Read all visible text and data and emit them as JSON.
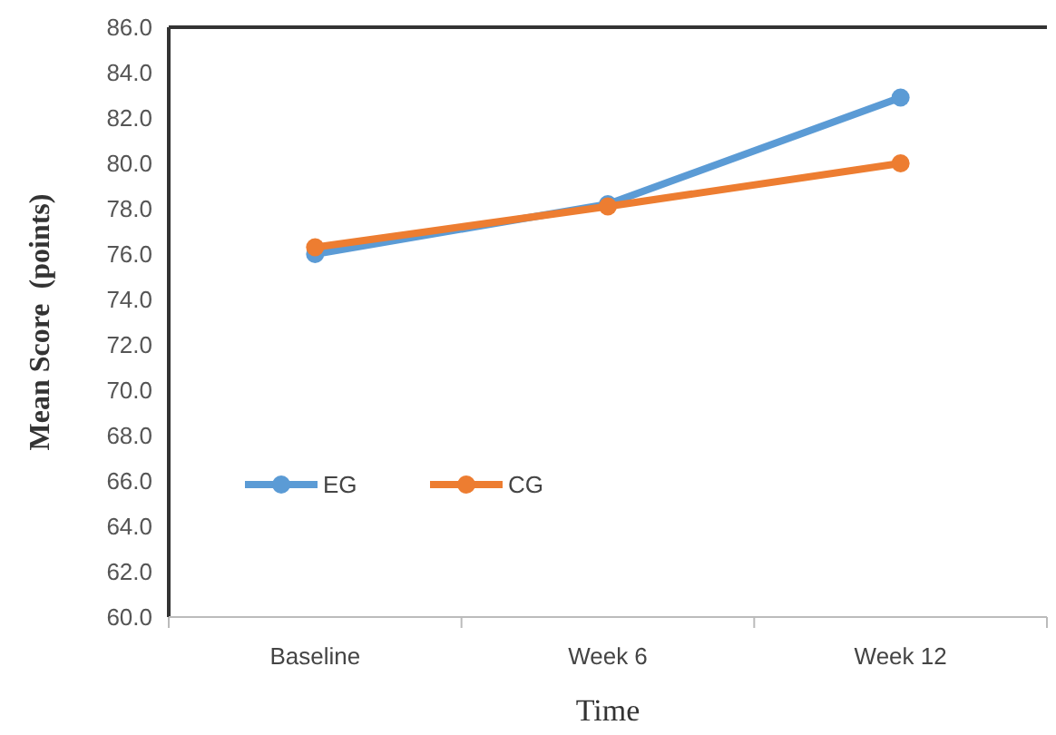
{
  "chart_data": {
    "type": "line",
    "xlabel": "Time",
    "ylabel": "Mean Score  (points)",
    "categories": [
      "Baseline",
      "Week 6",
      "Week 12"
    ],
    "series": [
      {
        "name": "EG",
        "color": "#5b9bd5",
        "values": [
          76.0,
          78.2,
          82.9
        ]
      },
      {
        "name": "CG",
        "color": "#ed7d31",
        "values": [
          76.3,
          78.1,
          80.0
        ]
      }
    ],
    "ylim": [
      60,
      86
    ],
    "yticks": [
      {
        "value": 60,
        "label": "60.0"
      },
      {
        "value": 62,
        "label": "62.0"
      },
      {
        "value": 64,
        "label": "64.0"
      },
      {
        "value": 66,
        "label": "66.0"
      },
      {
        "value": 68,
        "label": "68.0"
      },
      {
        "value": 70,
        "label": "70.0"
      },
      {
        "value": 72,
        "label": "72.0"
      },
      {
        "value": 74,
        "label": "74.0"
      },
      {
        "value": 76,
        "label": "76.0"
      },
      {
        "value": 78,
        "label": "78.0"
      },
      {
        "value": 80,
        "label": "80.0"
      },
      {
        "value": 82,
        "label": "82.0"
      },
      {
        "value": 84,
        "label": "84.0"
      },
      {
        "value": 86,
        "label": "86.0"
      }
    ],
    "legend": "left",
    "marker": "circle",
    "line_style": "solid"
  }
}
